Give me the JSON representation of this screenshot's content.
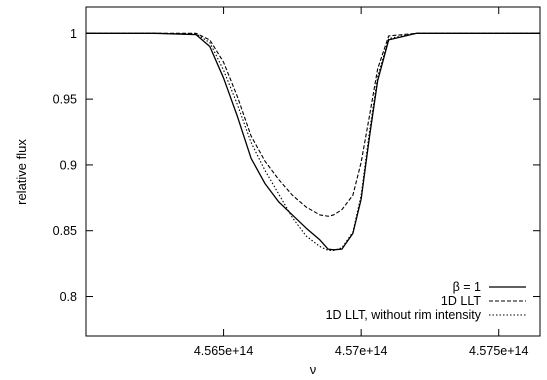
{
  "chart_data": {
    "type": "line",
    "title": "",
    "xlabel": "ν",
    "ylabel": "relative flux",
    "xlim": [
      456000000000000.0,
      457650000000000.0
    ],
    "ylim": [
      0.77,
      1.02
    ],
    "grid": false,
    "legend_position": "bottom-right",
    "x_ticks": [
      {
        "value": 456500000000000.0,
        "label": "4.565e+14"
      },
      {
        "value": 457000000000000.0,
        "label": "4.57e+14"
      },
      {
        "value": 457500000000000.0,
        "label": "4.575e+14"
      }
    ],
    "y_ticks": [
      {
        "value": 0.8,
        "label": "0.8"
      },
      {
        "value": 0.85,
        "label": "0.85"
      },
      {
        "value": 0.9,
        "label": "0.9"
      },
      {
        "value": 0.95,
        "label": "0.95"
      },
      {
        "value": 1.0,
        "label": "1"
      }
    ],
    "series": [
      {
        "name": "β = 1",
        "style": "solid",
        "x": [
          456000000000000.0,
          456250000000000.0,
          456400000000000.0,
          456450000000000.0,
          456500000000000.0,
          456550000000000.0,
          456600000000000.0,
          456650000000000.0,
          456700000000000.0,
          456750000000000.0,
          456800000000000.0,
          456850000000000.0,
          456880000000000.0,
          456900000000000.0,
          456930000000000.0,
          456970000000000.0,
          457000000000000.0,
          457030000000000.0,
          457060000000000.0,
          457100000000000.0,
          457200000000000.0,
          457650000000000.0
        ],
        "y": [
          1.0,
          1.0,
          0.999,
          0.99,
          0.966,
          0.937,
          0.905,
          0.886,
          0.872,
          0.862,
          0.852,
          0.843,
          0.836,
          0.8355,
          0.836,
          0.848,
          0.874,
          0.921,
          0.964,
          0.995,
          1.0,
          1.0
        ]
      },
      {
        "name": "1D LLT",
        "style": "dashed",
        "x": [
          456000000000000.0,
          456250000000000.0,
          456400000000000.0,
          456450000000000.0,
          456500000000000.0,
          456550000000000.0,
          456600000000000.0,
          456650000000000.0,
          456700000000000.0,
          456750000000000.0,
          456800000000000.0,
          456850000000000.0,
          456880000000000.0,
          456900000000000.0,
          456930000000000.0,
          456970000000000.0,
          457000000000000.0,
          457030000000000.0,
          457060000000000.0,
          457100000000000.0,
          457200000000000.0,
          457650000000000.0
        ],
        "y": [
          1.0,
          1.0,
          1.0,
          0.995,
          0.978,
          0.952,
          0.922,
          0.903,
          0.889,
          0.877,
          0.868,
          0.862,
          0.861,
          0.862,
          0.866,
          0.877,
          0.902,
          0.937,
          0.973,
          0.998,
          1.0,
          1.0
        ]
      },
      {
        "name": "1D LLT, without rim intensity",
        "style": "dotted",
        "x": [
          456000000000000.0,
          456250000000000.0,
          456400000000000.0,
          456450000000000.0,
          456500000000000.0,
          456550000000000.0,
          456600000000000.0,
          456650000000000.0,
          456700000000000.0,
          456750000000000.0,
          456800000000000.0,
          456850000000000.0,
          456880000000000.0,
          456900000000000.0,
          456930000000000.0,
          456970000000000.0,
          457000000000000.0,
          457030000000000.0,
          457060000000000.0,
          457100000000000.0,
          457200000000000.0,
          457650000000000.0
        ],
        "y": [
          1.0,
          1.0,
          0.9995,
          0.993,
          0.972,
          0.946,
          0.917,
          0.896,
          0.878,
          0.86,
          0.846,
          0.838,
          0.835,
          0.835,
          0.837,
          0.849,
          0.877,
          0.925,
          0.967,
          0.996,
          1.0,
          1.0
        ]
      }
    ]
  }
}
